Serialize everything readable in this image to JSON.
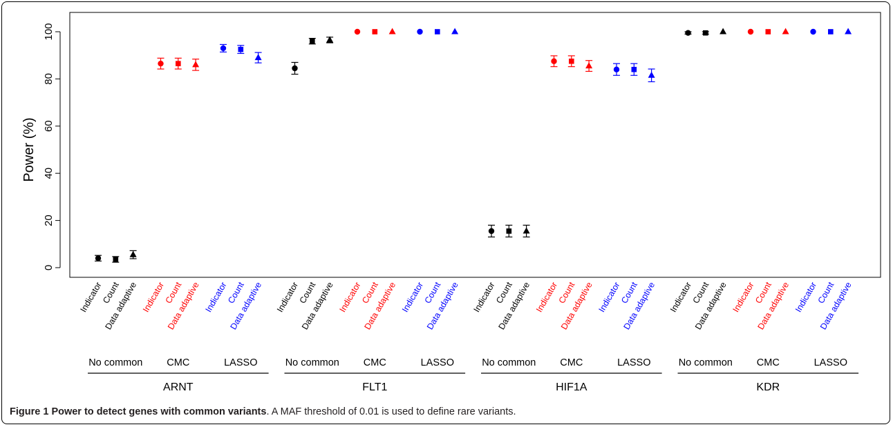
{
  "caption": {
    "label": "Figure 1",
    "title": "Power to detect genes with common variants",
    "text": ". A MAF threshold of 0.01 is used to define rare variants."
  },
  "chart_data": {
    "type": "scatter",
    "ylabel": "Power (%)",
    "ylim": [
      0,
      100
    ],
    "yticks": [
      0,
      20,
      40,
      60,
      80,
      100
    ],
    "grid": false,
    "colors": {
      "No common": "#000000",
      "CMC": "#ff0000",
      "LASSO": "#0000ff"
    },
    "markers": {
      "Indicator": "circle",
      "Count": "square",
      "Data adaptive": "triangle"
    },
    "methods": [
      "Indicator",
      "Count",
      "Data adaptive"
    ],
    "method_labels": [
      "Indicator",
      "Count",
      "Data adaptive"
    ],
    "groups": [
      "No common",
      "CMC",
      "LASSO"
    ],
    "genes": [
      {
        "name": "ARNT",
        "groups": [
          {
            "name": "No common",
            "values": [
              4.0,
              3.5,
              5.5
            ],
            "lower": [
              2.8,
              2.3,
              3.8
            ],
            "upper": [
              5.2,
              4.7,
              7.2
            ]
          },
          {
            "name": "CMC",
            "values": [
              86.5,
              86.5,
              86.0
            ],
            "lower": [
              84.2,
              84.2,
              83.6
            ],
            "upper": [
              88.8,
              88.8,
              88.4
            ]
          },
          {
            "name": "LASSO",
            "values": [
              93.0,
              92.5,
              89.0
            ],
            "lower": [
              91.4,
              90.8,
              86.8
            ],
            "upper": [
              94.6,
              94.2,
              91.2
            ]
          }
        ]
      },
      {
        "name": "FLT1",
        "groups": [
          {
            "name": "No common",
            "values": [
              84.5,
              96.0,
              96.5
            ],
            "lower": [
              82.0,
              94.8,
              95.3
            ],
            "upper": [
              87.0,
              97.2,
              97.7
            ]
          },
          {
            "name": "CMC",
            "values": [
              100,
              100,
              100
            ],
            "lower": [
              100,
              100,
              100
            ],
            "upper": [
              100,
              100,
              100
            ]
          },
          {
            "name": "LASSO",
            "values": [
              100,
              100,
              100
            ],
            "lower": [
              100,
              100,
              100
            ],
            "upper": [
              100,
              100,
              100
            ]
          }
        ]
      },
      {
        "name": "HIF1A",
        "groups": [
          {
            "name": "No common",
            "values": [
              15.5,
              15.5,
              15.5
            ],
            "lower": [
              13.0,
              13.0,
              13.0
            ],
            "upper": [
              18.0,
              18.0,
              18.0
            ]
          },
          {
            "name": "CMC",
            "values": [
              87.5,
              87.5,
              85.5
            ],
            "lower": [
              85.2,
              85.2,
              83.2
            ],
            "upper": [
              89.8,
              89.8,
              87.8
            ]
          },
          {
            "name": "LASSO",
            "values": [
              84.0,
              84.0,
              81.5
            ],
            "lower": [
              81.5,
              81.5,
              78.8
            ],
            "upper": [
              86.5,
              86.5,
              84.2
            ]
          }
        ]
      },
      {
        "name": "KDR",
        "groups": [
          {
            "name": "No common",
            "values": [
              99.5,
              99.5,
              100
            ],
            "lower": [
              99.0,
              99.0,
              100
            ],
            "upper": [
              100,
              100,
              100
            ]
          },
          {
            "name": "CMC",
            "values": [
              100,
              100,
              100
            ],
            "lower": [
              100,
              100,
              100
            ],
            "upper": [
              100,
              100,
              100
            ]
          },
          {
            "name": "LASSO",
            "values": [
              100,
              100,
              100
            ],
            "lower": [
              100,
              100,
              100
            ],
            "upper": [
              100,
              100,
              100
            ]
          }
        ]
      }
    ]
  }
}
